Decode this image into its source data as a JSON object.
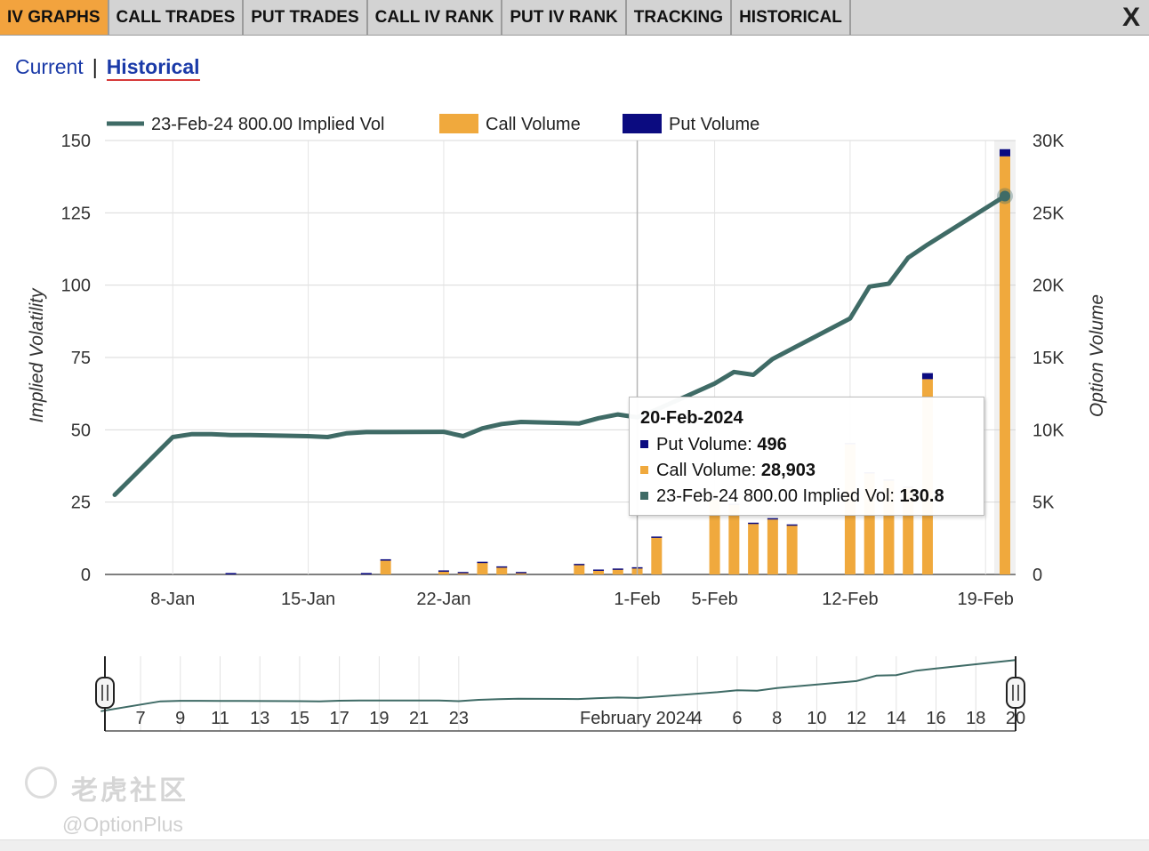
{
  "tabs": [
    {
      "label": "IV GRAPHS",
      "active": true
    },
    {
      "label": "CALL TRADES",
      "active": false
    },
    {
      "label": "PUT TRADES",
      "active": false
    },
    {
      "label": "CALL IV RANK",
      "active": false
    },
    {
      "label": "PUT IV RANK",
      "active": false
    },
    {
      "label": "TRACKING",
      "active": false
    },
    {
      "label": "HISTORICAL",
      "active": false
    }
  ],
  "close_label": "X",
  "subnav": {
    "current": "Current",
    "separator": "|",
    "historical": "Historical",
    "active": "Historical"
  },
  "colors": {
    "iv_line": "#3f6b66",
    "call": "#f0a93d",
    "put": "#0b0b80",
    "active_tab": "#f2a33e"
  },
  "chart_data": {
    "type": "bar+line",
    "xlabel": "",
    "ylabel_left": "Implied Volatility",
    "ylabel_right": "Option Volume",
    "legend": [
      "23-Feb-24 800.00 Implied Vol",
      "Call Volume",
      "Put Volume"
    ],
    "legend_position": "top",
    "y_left_ticks": [
      "0",
      "25",
      "50",
      "75",
      "100",
      "125",
      "150"
    ],
    "y_left_range": [
      0,
      150
    ],
    "y_right_ticks": [
      "0",
      "5K",
      "10K",
      "15K",
      "20K",
      "25K",
      "30K"
    ],
    "y_right_range": [
      0,
      30000
    ],
    "x_ticks": [
      {
        "date": "2024-01-08",
        "label": "8-Jan"
      },
      {
        "date": "2024-01-15",
        "label": "15-Jan"
      },
      {
        "date": "2024-01-22",
        "label": "22-Jan"
      },
      {
        "date": "2024-02-01",
        "label": "1-Feb"
      },
      {
        "date": "2024-02-05",
        "label": "5-Feb"
      },
      {
        "date": "2024-02-12",
        "label": "12-Feb"
      },
      {
        "date": "2024-02-19",
        "label": "19-Feb"
      }
    ],
    "x_range": [
      "2024-01-05",
      "2024-02-20"
    ],
    "grid": true,
    "crosshair_date": "2024-02-01",
    "iv_series": {
      "name": "23-Feb-24 800.00 Implied Vol",
      "points": [
        [
          "2024-01-05",
          27.5
        ],
        [
          "2024-01-08",
          47.5
        ],
        [
          "2024-01-09",
          48.5
        ],
        [
          "2024-01-10",
          48.5
        ],
        [
          "2024-01-11",
          48.2
        ],
        [
          "2024-01-12",
          48.2
        ],
        [
          "2024-01-15",
          47.8
        ],
        [
          "2024-01-16",
          47.5
        ],
        [
          "2024-01-17",
          48.8
        ],
        [
          "2024-01-18",
          49.2
        ],
        [
          "2024-01-19",
          49.2
        ],
        [
          "2024-01-22",
          49.3
        ],
        [
          "2024-01-23",
          47.8
        ],
        [
          "2024-01-24",
          50.5
        ],
        [
          "2024-01-25",
          52.0
        ],
        [
          "2024-01-26",
          52.7
        ],
        [
          "2024-01-29",
          52.2
        ],
        [
          "2024-01-30",
          54.0
        ],
        [
          "2024-01-31",
          55.3
        ],
        [
          "2024-02-01",
          54.3
        ],
        [
          "2024-02-02",
          57.0
        ],
        [
          "2024-02-05",
          66.0
        ],
        [
          "2024-02-06",
          70.0
        ],
        [
          "2024-02-07",
          69.0
        ],
        [
          "2024-02-08",
          74.5
        ],
        [
          "2024-02-12",
          88.5
        ],
        [
          "2024-02-13",
          99.5
        ],
        [
          "2024-02-14",
          100.5
        ],
        [
          "2024-02-15",
          109.5
        ],
        [
          "2024-02-16",
          114.0
        ],
        [
          "2024-02-20",
          130.8
        ]
      ]
    },
    "volume_bars": [
      {
        "date": "2024-01-11",
        "call": 0,
        "put": 100
      },
      {
        "date": "2024-01-18",
        "call": 0,
        "put": 100
      },
      {
        "date": "2024-01-19",
        "call": 950,
        "put": 100
      },
      {
        "date": "2024-01-22",
        "call": 200,
        "put": 80
      },
      {
        "date": "2024-01-23",
        "call": 100,
        "put": 70
      },
      {
        "date": "2024-01-24",
        "call": 800,
        "put": 80
      },
      {
        "date": "2024-01-25",
        "call": 500,
        "put": 60
      },
      {
        "date": "2024-01-26",
        "call": 120,
        "put": 50
      },
      {
        "date": "2024-01-29",
        "call": 650,
        "put": 80
      },
      {
        "date": "2024-01-30",
        "call": 280,
        "put": 60
      },
      {
        "date": "2024-01-31",
        "call": 350,
        "put": 60
      },
      {
        "date": "2024-02-01",
        "call": 420,
        "put": 80
      },
      {
        "date": "2024-02-02",
        "call": 2550,
        "put": 70
      },
      {
        "date": "2024-02-05",
        "call": 5200,
        "put": 80
      },
      {
        "date": "2024-02-06",
        "call": 4800,
        "put": 90
      },
      {
        "date": "2024-02-07",
        "call": 3500,
        "put": 80
      },
      {
        "date": "2024-02-08",
        "call": 3800,
        "put": 90
      },
      {
        "date": "2024-02-09",
        "call": 3400,
        "put": 60
      },
      {
        "date": "2024-02-12",
        "call": 9000,
        "put": 90
      },
      {
        "date": "2024-02-13",
        "call": 7000,
        "put": 70
      },
      {
        "date": "2024-02-14",
        "call": 6500,
        "put": 70
      },
      {
        "date": "2024-02-15",
        "call": 6000,
        "put": 80
      },
      {
        "date": "2024-02-16",
        "call": 13500,
        "put": 420
      },
      {
        "date": "2024-02-20",
        "call": 28903,
        "put": 496
      }
    ],
    "tooltip": {
      "date": "20-Feb-2024",
      "put_label": "Put Volume:",
      "put_value": "496",
      "call_label": "Call Volume:",
      "call_value": "28,903",
      "iv_label": "23-Feb-24 800.00 Implied Vol:",
      "iv_value": "130.8"
    },
    "navigator": {
      "labels": [
        {
          "date": "2024-01-07",
          "label": "7"
        },
        {
          "date": "2024-01-09",
          "label": "9"
        },
        {
          "date": "2024-01-11",
          "label": "11"
        },
        {
          "date": "2024-01-13",
          "label": "13"
        },
        {
          "date": "2024-01-15",
          "label": "15"
        },
        {
          "date": "2024-01-17",
          "label": "17"
        },
        {
          "date": "2024-01-19",
          "label": "19"
        },
        {
          "date": "2024-01-21",
          "label": "21"
        },
        {
          "date": "2024-01-23",
          "label": "23"
        },
        {
          "date": "2024-02-01",
          "label": "February 2024"
        },
        {
          "date": "2024-02-04",
          "label": "4"
        },
        {
          "date": "2024-02-06",
          "label": "6"
        },
        {
          "date": "2024-02-08",
          "label": "8"
        },
        {
          "date": "2024-02-10",
          "label": "10"
        },
        {
          "date": "2024-02-12",
          "label": "12"
        },
        {
          "date": "2024-02-14",
          "label": "14"
        },
        {
          "date": "2024-02-16",
          "label": "16"
        },
        {
          "date": "2024-02-18",
          "label": "18"
        },
        {
          "date": "2024-02-20",
          "label": "20"
        }
      ]
    }
  },
  "watermark": {
    "text": "老虎社区",
    "handle": "@OptionPlus"
  }
}
